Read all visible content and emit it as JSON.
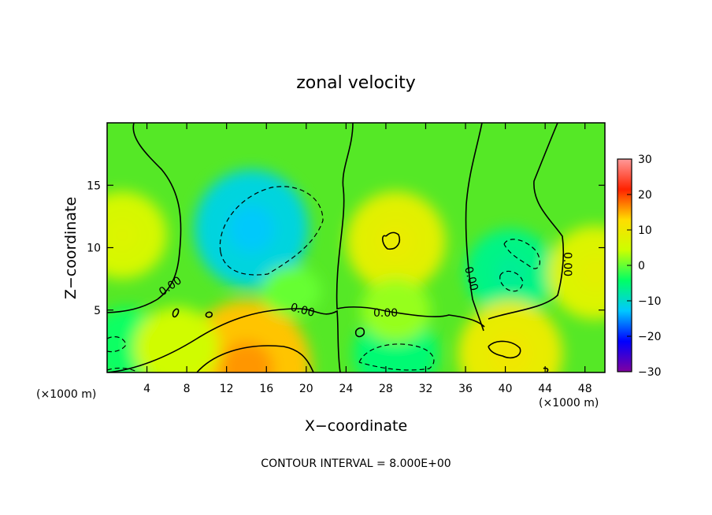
{
  "chart_data": {
    "type": "heatmap",
    "title": "zonal velocity",
    "xlabel": "X−coordinate",
    "ylabel": "Z−coordinate",
    "x_unit": "(×1000 m)",
    "x_unit_right": "(×1000 m)",
    "xlim": [
      0,
      50
    ],
    "ylim": [
      0,
      20
    ],
    "x_ticks": [
      4,
      8,
      12,
      16,
      20,
      24,
      28,
      32,
      36,
      40,
      44,
      48
    ],
    "y_ticks": [
      5,
      10,
      15
    ],
    "x_tick_labels": [
      "4",
      "8",
      "12",
      "16",
      "20",
      "24",
      "28",
      "32",
      "36",
      "40",
      "44",
      "48"
    ],
    "y_tick_labels": [
      "5",
      "10",
      "15"
    ],
    "colorbar": {
      "range": [
        -30,
        30
      ],
      "ticks": [
        30,
        20,
        10,
        0,
        -10,
        -20,
        -30
      ],
      "tick_labels": [
        "30",
        "20",
        "10",
        "0",
        "−10",
        "−20",
        "−30"
      ],
      "colors": [
        "#8000a0",
        "#0000ff",
        "#00c8ff",
        "#00ff66",
        "#ccff00",
        "#ffdd00",
        "#ff2200",
        "#ff9999"
      ]
    },
    "contour_labels": [
      "0.00",
      "0.00",
      "0.00",
      "0.00",
      "0.00"
    ],
    "contour_interval_text": "CONTOUR INTERVAL = 8.000E+00",
    "features": [
      {
        "x": 14.5,
        "z": 11.5,
        "value": -11
      },
      {
        "x": 40.5,
        "z": 8.0,
        "value": -6
      },
      {
        "x": 29.0,
        "z": 1.5,
        "value": -5
      },
      {
        "x": 2.0,
        "z": 2.2,
        "value": -4
      },
      {
        "x": 14.0,
        "z": 0.3,
        "value": 14
      },
      {
        "x": 40.5,
        "z": 1.5,
        "value": 9
      },
      {
        "x": 29.0,
        "z": 10.5,
        "value": 8
      },
      {
        "x": 1.5,
        "z": 11.0,
        "value": 6
      },
      {
        "x": 49.0,
        "z": 8.0,
        "value": 7
      },
      {
        "x": 7.0,
        "z": 2.0,
        "value": 5
      },
      {
        "x": 18.5,
        "z": 6.5,
        "value": 0
      },
      {
        "x": 29.0,
        "z": 5.0,
        "value": 2
      }
    ]
  }
}
